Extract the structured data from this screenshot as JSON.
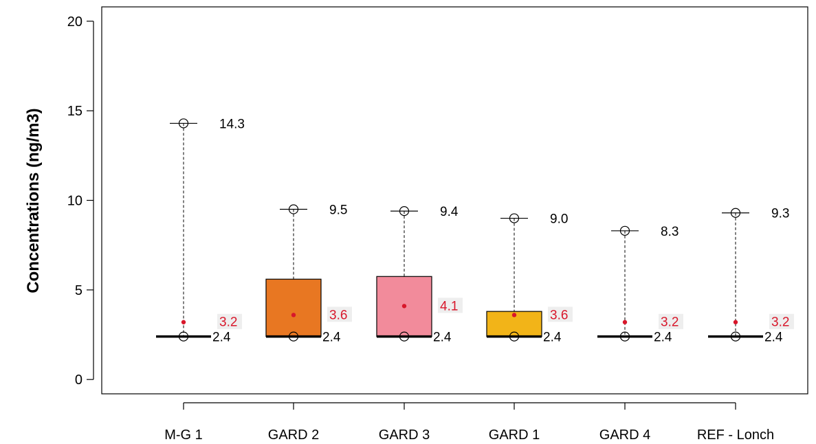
{
  "chart_data": {
    "type": "box",
    "ylabel": "Concentrations (ng/m3)",
    "ylim": [
      -0.8,
      20.8
    ],
    "yticks": [
      0,
      5,
      10,
      15,
      20
    ],
    "grid": false,
    "categories": [
      "M-G 1",
      "GARD 2",
      "GARD 3",
      "GARD 1",
      "GARD 4",
      "REF - Lonch"
    ],
    "boxes": [
      {
        "label": "M-G 1",
        "min": 2.4,
        "q1": 2.4,
        "median": 2.4,
        "q3": 2.4,
        "max": 14.3,
        "mean": 3.2,
        "color": "#ffffff"
      },
      {
        "label": "GARD 2",
        "min": 2.4,
        "q1": 2.4,
        "median": 2.4,
        "q3": 5.6,
        "max": 9.5,
        "mean": 3.6,
        "color": "#e87722"
      },
      {
        "label": "GARD 3",
        "min": 2.4,
        "q1": 2.4,
        "median": 2.4,
        "q3": 5.75,
        "max": 9.4,
        "mean": 4.1,
        "color": "#f28b9b"
      },
      {
        "label": "GARD 1",
        "min": 2.4,
        "q1": 2.4,
        "median": 2.4,
        "q3": 3.8,
        "max": 9.0,
        "mean": 3.6,
        "color": "#f2b418"
      },
      {
        "label": "GARD 4",
        "min": 2.4,
        "q1": 2.4,
        "median": 2.4,
        "q3": 2.4,
        "max": 8.3,
        "mean": 3.2,
        "color": "#ffffff"
      },
      {
        "label": "REF - Lonch",
        "min": 2.4,
        "q1": 2.4,
        "median": 2.4,
        "q3": 2.4,
        "max": 9.3,
        "mean": 3.2,
        "color": "#ffffff"
      }
    ],
    "labels": {
      "max": [
        "14.3",
        "9.5",
        "9.4",
        "9.0",
        "8.3",
        "9.3"
      ],
      "mean": [
        "3.2",
        "3.6",
        "4.1",
        "3.6",
        "3.2",
        "3.2"
      ],
      "median": [
        "2.4",
        "2.4",
        "2.4",
        "2.4",
        "2.4",
        "2.4"
      ]
    },
    "colors": {
      "mean": "#d8172b",
      "mean_label_bg": "#eeeeee",
      "axis": "#000000"
    }
  }
}
